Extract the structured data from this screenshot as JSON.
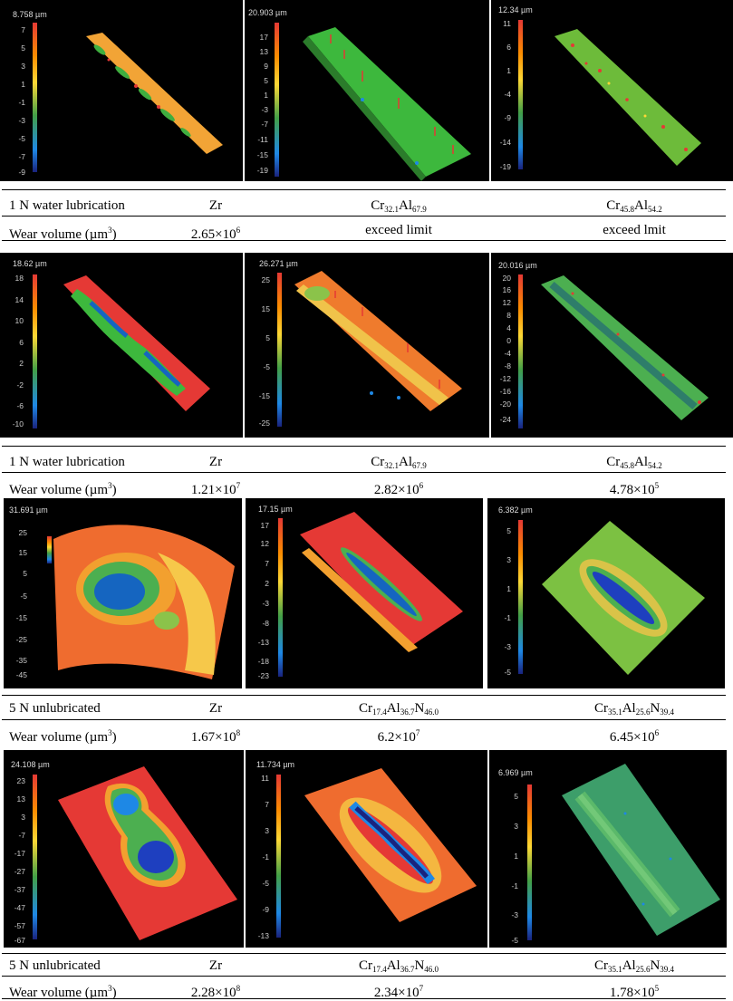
{
  "rows": [
    {
      "panels": [
        {
          "max": "8.758 µm",
          "ticks": [
            "7",
            "5",
            "3",
            "1",
            "-1",
            "-3",
            "-5",
            "-7",
            "-9"
          ]
        },
        {
          "max": "20.903 µm",
          "ticks": [
            "17",
            "13",
            "9",
            "5",
            "1",
            "-3",
            "-7",
            "-11",
            "-15",
            "-19"
          ]
        },
        {
          "max": "12.34 µm",
          "ticks": [
            "11",
            "6",
            "1",
            "-4",
            "-9",
            "-14",
            "-19"
          ]
        }
      ],
      "condition": "1 N water lubrication",
      "wear_label_text": "Wear volume (µm",
      "materials": [
        {
          "base": "Zr"
        },
        {
          "p1": "Cr",
          "s1": "32.1",
          "p2": "Al",
          "s2": "67.9"
        },
        {
          "p1": "Cr",
          "s1": "45.8",
          "p2": "Al",
          "s2": "54.2"
        }
      ],
      "volumes": [
        {
          "m": "2.65×10",
          "e": "6"
        },
        {
          "text": "exceed limit"
        },
        {
          "text": "exceed lmit"
        }
      ]
    },
    {
      "panels": [
        {
          "max": "18.62 µm",
          "ticks": [
            "18",
            "14",
            "10",
            "6",
            "2",
            "-2",
            "-6",
            "-10"
          ]
        },
        {
          "max": "26.271 µm",
          "ticks": [
            "25",
            "15",
            "5",
            "-5",
            "-15",
            "-25"
          ]
        },
        {
          "max": "20.016 µm",
          "ticks": [
            "20",
            "16",
            "12",
            "8",
            "4",
            "0",
            "-4",
            "-8",
            "-12",
            "-16",
            "-20",
            "-24"
          ]
        }
      ],
      "condition": "1 N water lubrication",
      "wear_label_text": "Wear volume (µm",
      "materials": [
        {
          "base": "Zr"
        },
        {
          "p1": "Cr",
          "s1": "32.1",
          "p2": "Al",
          "s2": "67.9"
        },
        {
          "p1": "Cr",
          "s1": "45.8",
          "p2": "Al",
          "s2": "54.2"
        }
      ],
      "volumes": [
        {
          "m": "1.21×10",
          "e": "7"
        },
        {
          "m": "2.82×10",
          "e": "6"
        },
        {
          "m": "4.78×10",
          "e": "5"
        }
      ]
    },
    {
      "panels": [
        {
          "max": "31.691 µm",
          "ticks": [
            "25",
            "15",
            "5",
            "-5",
            "-15",
            "-25",
            "-35",
            "-45"
          ]
        },
        {
          "max": "17.15 µm",
          "ticks": [
            "17",
            "12",
            "7",
            "2",
            "-3",
            "-8",
            "-13",
            "-18",
            "-23"
          ]
        },
        {
          "max": "6.382 µm",
          "ticks": [
            "5",
            "3",
            "1",
            "-1",
            "-3",
            "-5"
          ]
        }
      ],
      "condition": "5 N unlubricated",
      "wear_label_text": "Wear volume (µm",
      "materials": [
        {
          "base": "Zr"
        },
        {
          "p1": "Cr",
          "s1": "17.4",
          "p2": "Al",
          "s2": "36.7",
          "p3": "N",
          "s3": "46.0"
        },
        {
          "p1": "Cr",
          "s1": "35.1",
          "p2": "Al",
          "s2": "25.6",
          "p3": "N",
          "s3": "39.4"
        }
      ],
      "volumes": [
        {
          "m": "1.67×10",
          "e": "8"
        },
        {
          "m": "6.2×10",
          "e": "7"
        },
        {
          "m": "6.45×10",
          "e": "6"
        }
      ]
    },
    {
      "panels": [
        {
          "max": "24.108 µm",
          "ticks": [
            "23",
            "13",
            "3",
            "-7",
            "-17",
            "-27",
            "-37",
            "-47",
            "-57",
            "-67"
          ]
        },
        {
          "max": "11.734 µm",
          "ticks": [
            "11",
            "7",
            "3",
            "-1",
            "-5",
            "-9",
            "-13"
          ]
        },
        {
          "max": "6.969 µm",
          "ticks": [
            "5",
            "3",
            "1",
            "-1",
            "-3",
            "-5"
          ]
        }
      ],
      "condition": "5 N unlubricated",
      "wear_label_text": "Wear volume (µm",
      "materials": [
        {
          "base": "Zr"
        },
        {
          "p1": "Cr",
          "s1": "17.4",
          "p2": "Al",
          "s2": "36.7",
          "p3": "N",
          "s3": "46.0"
        },
        {
          "p1": "Cr",
          "s1": "35.1",
          "p2": "Al",
          "s2": "25.6",
          "p3": "N",
          "s3": "39.4"
        }
      ],
      "volumes": [
        {
          "m": "2.28×10",
          "e": "8"
        },
        {
          "m": "2.34×10",
          "e": "7"
        },
        {
          "m": "1.78×10",
          "e": "5"
        }
      ]
    }
  ],
  "exponent": "3",
  "closing_paren": ")"
}
